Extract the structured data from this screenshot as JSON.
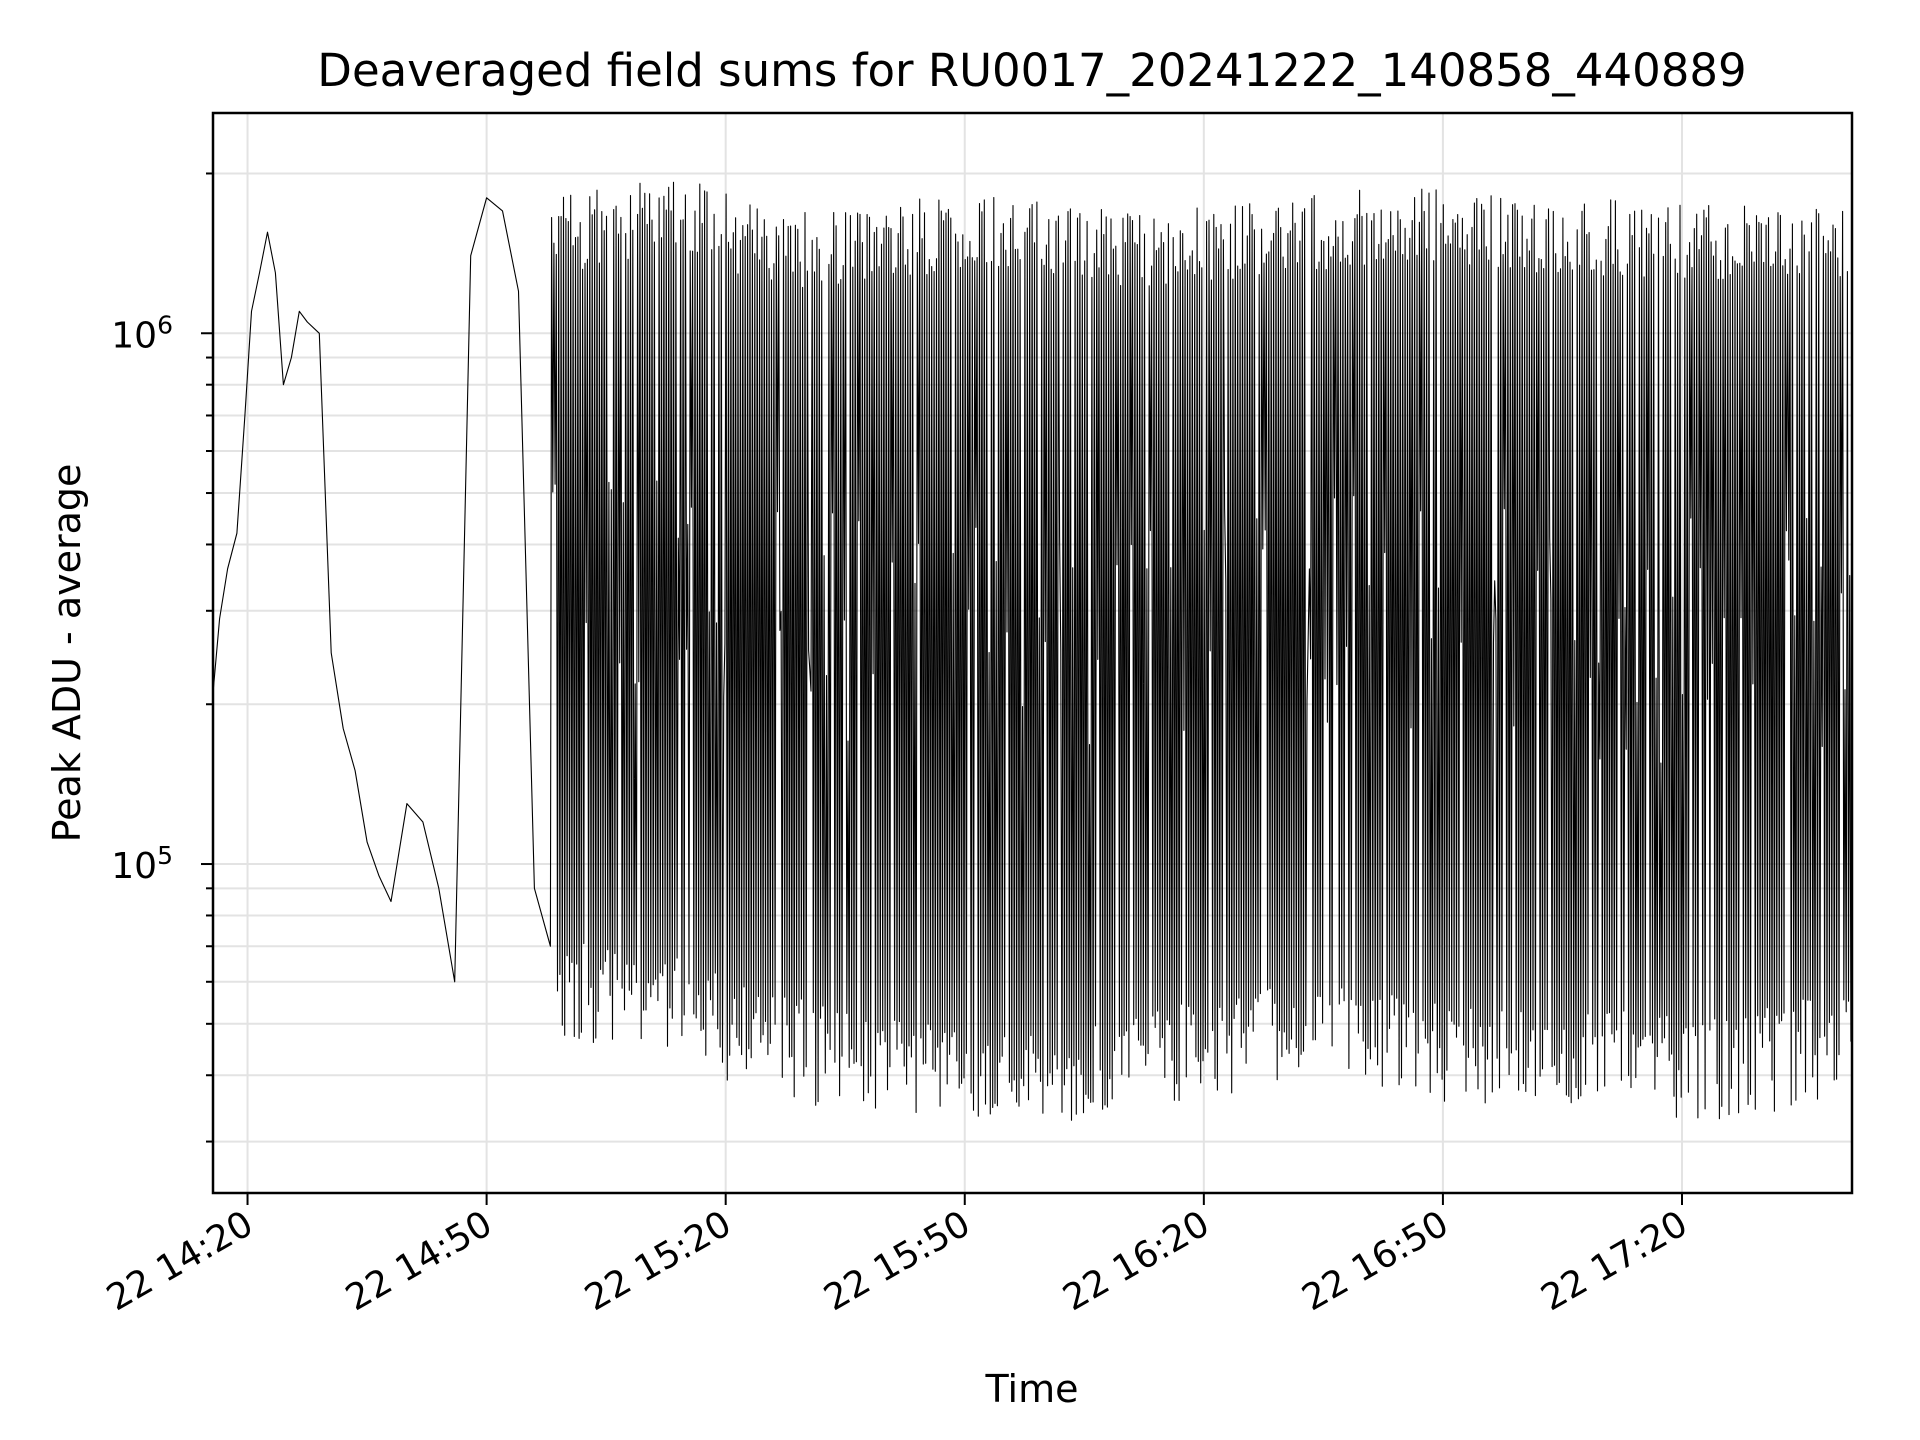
{
  "chart_data": {
    "type": "line",
    "title": "Deaveraged field sums for RU0017_20241222_140858_440889",
    "xlabel": "Time",
    "ylabel": "Peak ADU - average",
    "yscale": "log",
    "ylim": [
      24000,
      2600000
    ],
    "xlim": [
      "2024-12-22 14:15:40",
      "2024-12-22 17:41:20"
    ],
    "grid": true,
    "x_ticks": [
      {
        "value": "2024-12-22 14:20",
        "label": "22 14:20"
      },
      {
        "value": "2024-12-22 14:50",
        "label": "22 14:50"
      },
      {
        "value": "2024-12-22 15:20",
        "label": "22 15:20"
      },
      {
        "value": "2024-12-22 15:50",
        "label": "22 15:50"
      },
      {
        "value": "2024-12-22 16:20",
        "label": "22 16:20"
      },
      {
        "value": "2024-12-22 16:50",
        "label": "22 16:50"
      },
      {
        "value": "2024-12-22 17:20",
        "label": "22 17:20"
      }
    ],
    "y_ticks": [
      {
        "value": 100000,
        "base": "10",
        "exp": "5"
      },
      {
        "value": 1000000,
        "base": "10",
        "exp": "6"
      }
    ],
    "series": [
      {
        "color": "#000000",
        "envelope_note_free": true,
        "x": [
          "2024-12-22 14:15:40",
          "2024-12-22 14:16:30",
          "2024-12-22 14:17:30",
          "2024-12-22 14:18:40",
          "2024-12-22 14:19:40",
          "2024-12-22 14:20:30",
          "2024-12-22 14:21:30",
          "2024-12-22 14:22:30",
          "2024-12-22 14:23:30",
          "2024-12-22 14:24:30",
          "2024-12-22 14:25:30",
          "2024-12-22 14:26:30",
          "2024-12-22 14:27:30",
          "2024-12-22 14:29:00",
          "2024-12-22 14:30:30",
          "2024-12-22 14:32:00",
          "2024-12-22 14:33:30",
          "2024-12-22 14:35:00",
          "2024-12-22 14:36:30",
          "2024-12-22 14:38:00",
          "2024-12-22 14:40:00",
          "2024-12-22 14:42:00",
          "2024-12-22 14:44:00",
          "2024-12-22 14:46:00",
          "2024-12-22 14:48:00",
          "2024-12-22 14:50:00",
          "2024-12-22 14:52:00",
          "2024-12-22 14:54:00",
          "2024-12-22 14:56:00",
          "2024-12-22 14:58:00"
        ],
        "y": [
          210000,
          290000,
          360000,
          420000,
          700000,
          1100000,
          1300000,
          1550000,
          1300000,
          800000,
          900000,
          1100000,
          1050000,
          1000000,
          250000,
          180000,
          150000,
          110000,
          95000,
          85000,
          130000,
          120000,
          90000,
          60000,
          1400000,
          1800000,
          1700000,
          1200000,
          90000,
          70000
        ],
        "envelope": {
          "x_start": "2024-12-22 14:58:00",
          "x_end": "2024-12-22 17:41:20",
          "upper": [
            1700000,
            1900000,
            1600000,
            1700000,
            1750000,
            1600000,
            1700000,
            1800000,
            1750000,
            1700000,
            1650000,
            1700000
          ],
          "lower": [
            55000,
            50000,
            42000,
            38000,
            36000,
            40000,
            44000,
            43000,
            40000,
            40000,
            38000,
            44000
          ]
        }
      }
    ]
  }
}
